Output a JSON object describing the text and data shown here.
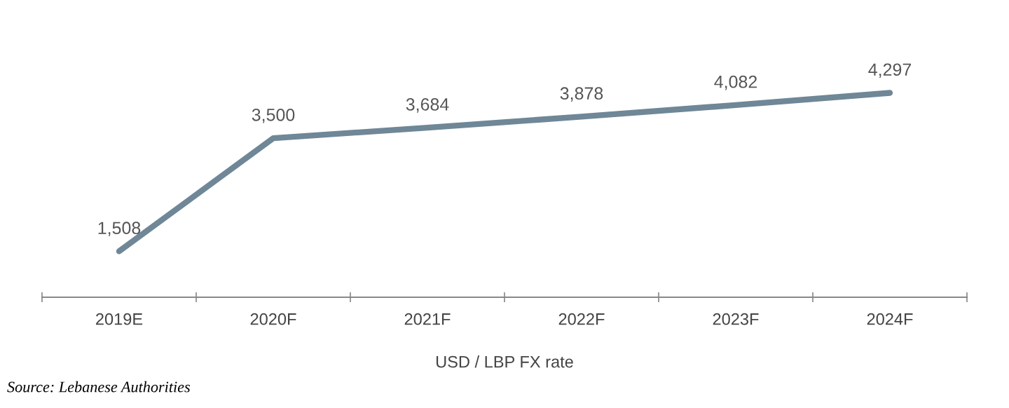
{
  "chart_data": {
    "type": "line",
    "categories": [
      "2019E",
      "2020F",
      "2021F",
      "2022F",
      "2023F",
      "2024F"
    ],
    "values": [
      1508,
      3500,
      3684,
      3878,
      4082,
      4297
    ],
    "value_labels": [
      "1,508",
      "3,500",
      "3,684",
      "3,878",
      "4,082",
      "4,297"
    ],
    "color": "#6f8797",
    "grid": false,
    "legend": false,
    "marker": "none",
    "line_style": "solid",
    "xlabel": "USD / LBP FX rate",
    "annotations": [
      "Source: Lebanese Authorities"
    ]
  }
}
